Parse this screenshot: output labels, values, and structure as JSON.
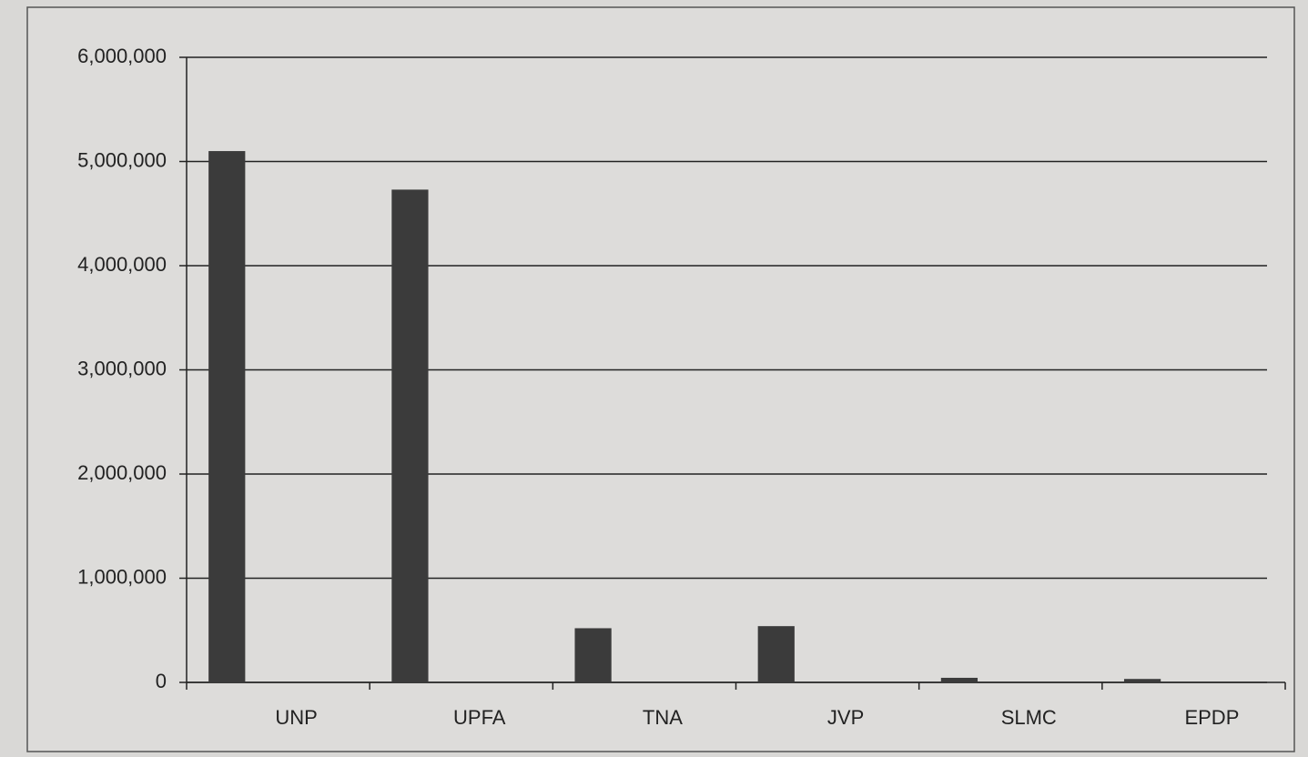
{
  "chart_data": {
    "type": "bar",
    "categories": [
      "UNP",
      "UPFA",
      "TNA",
      "JVP",
      "SLMC",
      "EPDP"
    ],
    "values": [
      5100000,
      4730000,
      520000,
      540000,
      44000,
      33000
    ],
    "color": "#3b3b3b",
    "ylim": [
      0,
      6000000
    ],
    "yticks": [
      0,
      {
        "value": 1000000,
        "label": "1,000,000"
      },
      {
        "value": 2000000,
        "label": "2,000,000"
      },
      {
        "value": 3000000,
        "label": "3,000,000"
      },
      {
        "value": 4000000,
        "label": "4,000,000"
      },
      {
        "value": 5000000,
        "label": "5,000,000"
      },
      {
        "value": 6000000,
        "label": "6,000,000"
      }
    ],
    "grid": true
  }
}
